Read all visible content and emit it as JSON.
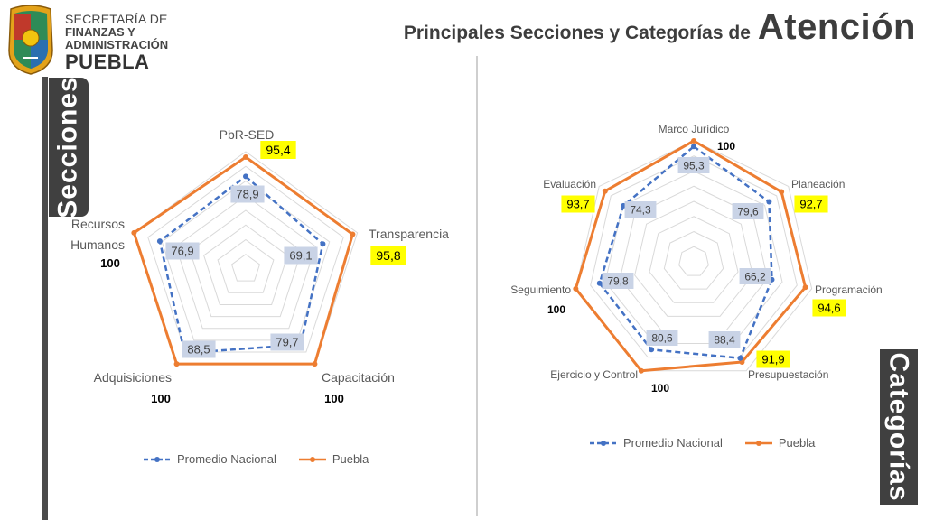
{
  "header": {
    "org_line1": "SECRETARÍA DE",
    "org_line2": "FINANZAS Y",
    "org_line3": "ADMINISTRACIÓN",
    "org_line4": "PUEBLA",
    "title_part1": "Principales Secciones y Categorías de",
    "title_part2": "Atención"
  },
  "side_labels": {
    "left": "Secciones",
    "right": "Categorías"
  },
  "colors": {
    "promedio": "#4472c4",
    "puebla": "#ed7d31",
    "highlight": "#ffff00",
    "grid": "#d9d9d9",
    "label_box": "#c9d3e6"
  },
  "chart_data": [
    {
      "type": "radar",
      "categories": [
        "PbR-SED",
        "Transparencia",
        "Capacitación",
        "Adquisiciones",
        "Recursos Humanos"
      ],
      "series": [
        {
          "name": "Promedio Nacional",
          "values": [
            78.9,
            69.1,
            79.7,
            88.5,
            76.9
          ]
        },
        {
          "name": "Puebla",
          "values": [
            95.4,
            95.8,
            100,
            100,
            100
          ]
        }
      ],
      "value_labels_promedio": [
        "78,9",
        "69,1",
        "79,7",
        "88,5",
        "76,9"
      ],
      "value_labels_puebla": [
        "95,4",
        "95,8",
        "100",
        "100",
        "100"
      ],
      "puebla_highlighted": [
        true,
        true,
        false,
        false,
        false
      ],
      "range": [
        0,
        100
      ],
      "grid_rings": 8,
      "legend_position": "bottom"
    },
    {
      "type": "radar",
      "categories": [
        "Marco Jurídico",
        "Planeación",
        "Programación",
        "Presupuestación",
        "Ejercicio y Control",
        "Seguimiento",
        "Evaluación"
      ],
      "series": [
        {
          "name": "Promedio Nacional",
          "values": [
            95.3,
            79.6,
            66.2,
            88.4,
            80.6,
            79.8,
            74.3
          ]
        },
        {
          "name": "Puebla",
          "values": [
            100,
            92.7,
            94.6,
            91.9,
            100,
            100,
            93.7
          ]
        }
      ],
      "value_labels_promedio": [
        "95,3",
        "79,6",
        "66,2",
        "88,4",
        "80,6",
        "79,8",
        "74,3"
      ],
      "value_labels_puebla": [
        "100",
        "92,7",
        "94,6",
        "91,9",
        "100",
        "100",
        "93,7"
      ],
      "puebla_highlighted": [
        false,
        true,
        true,
        true,
        false,
        false,
        true
      ],
      "range": [
        0,
        100
      ],
      "grid_rings": 8,
      "legend_position": "bottom"
    }
  ]
}
